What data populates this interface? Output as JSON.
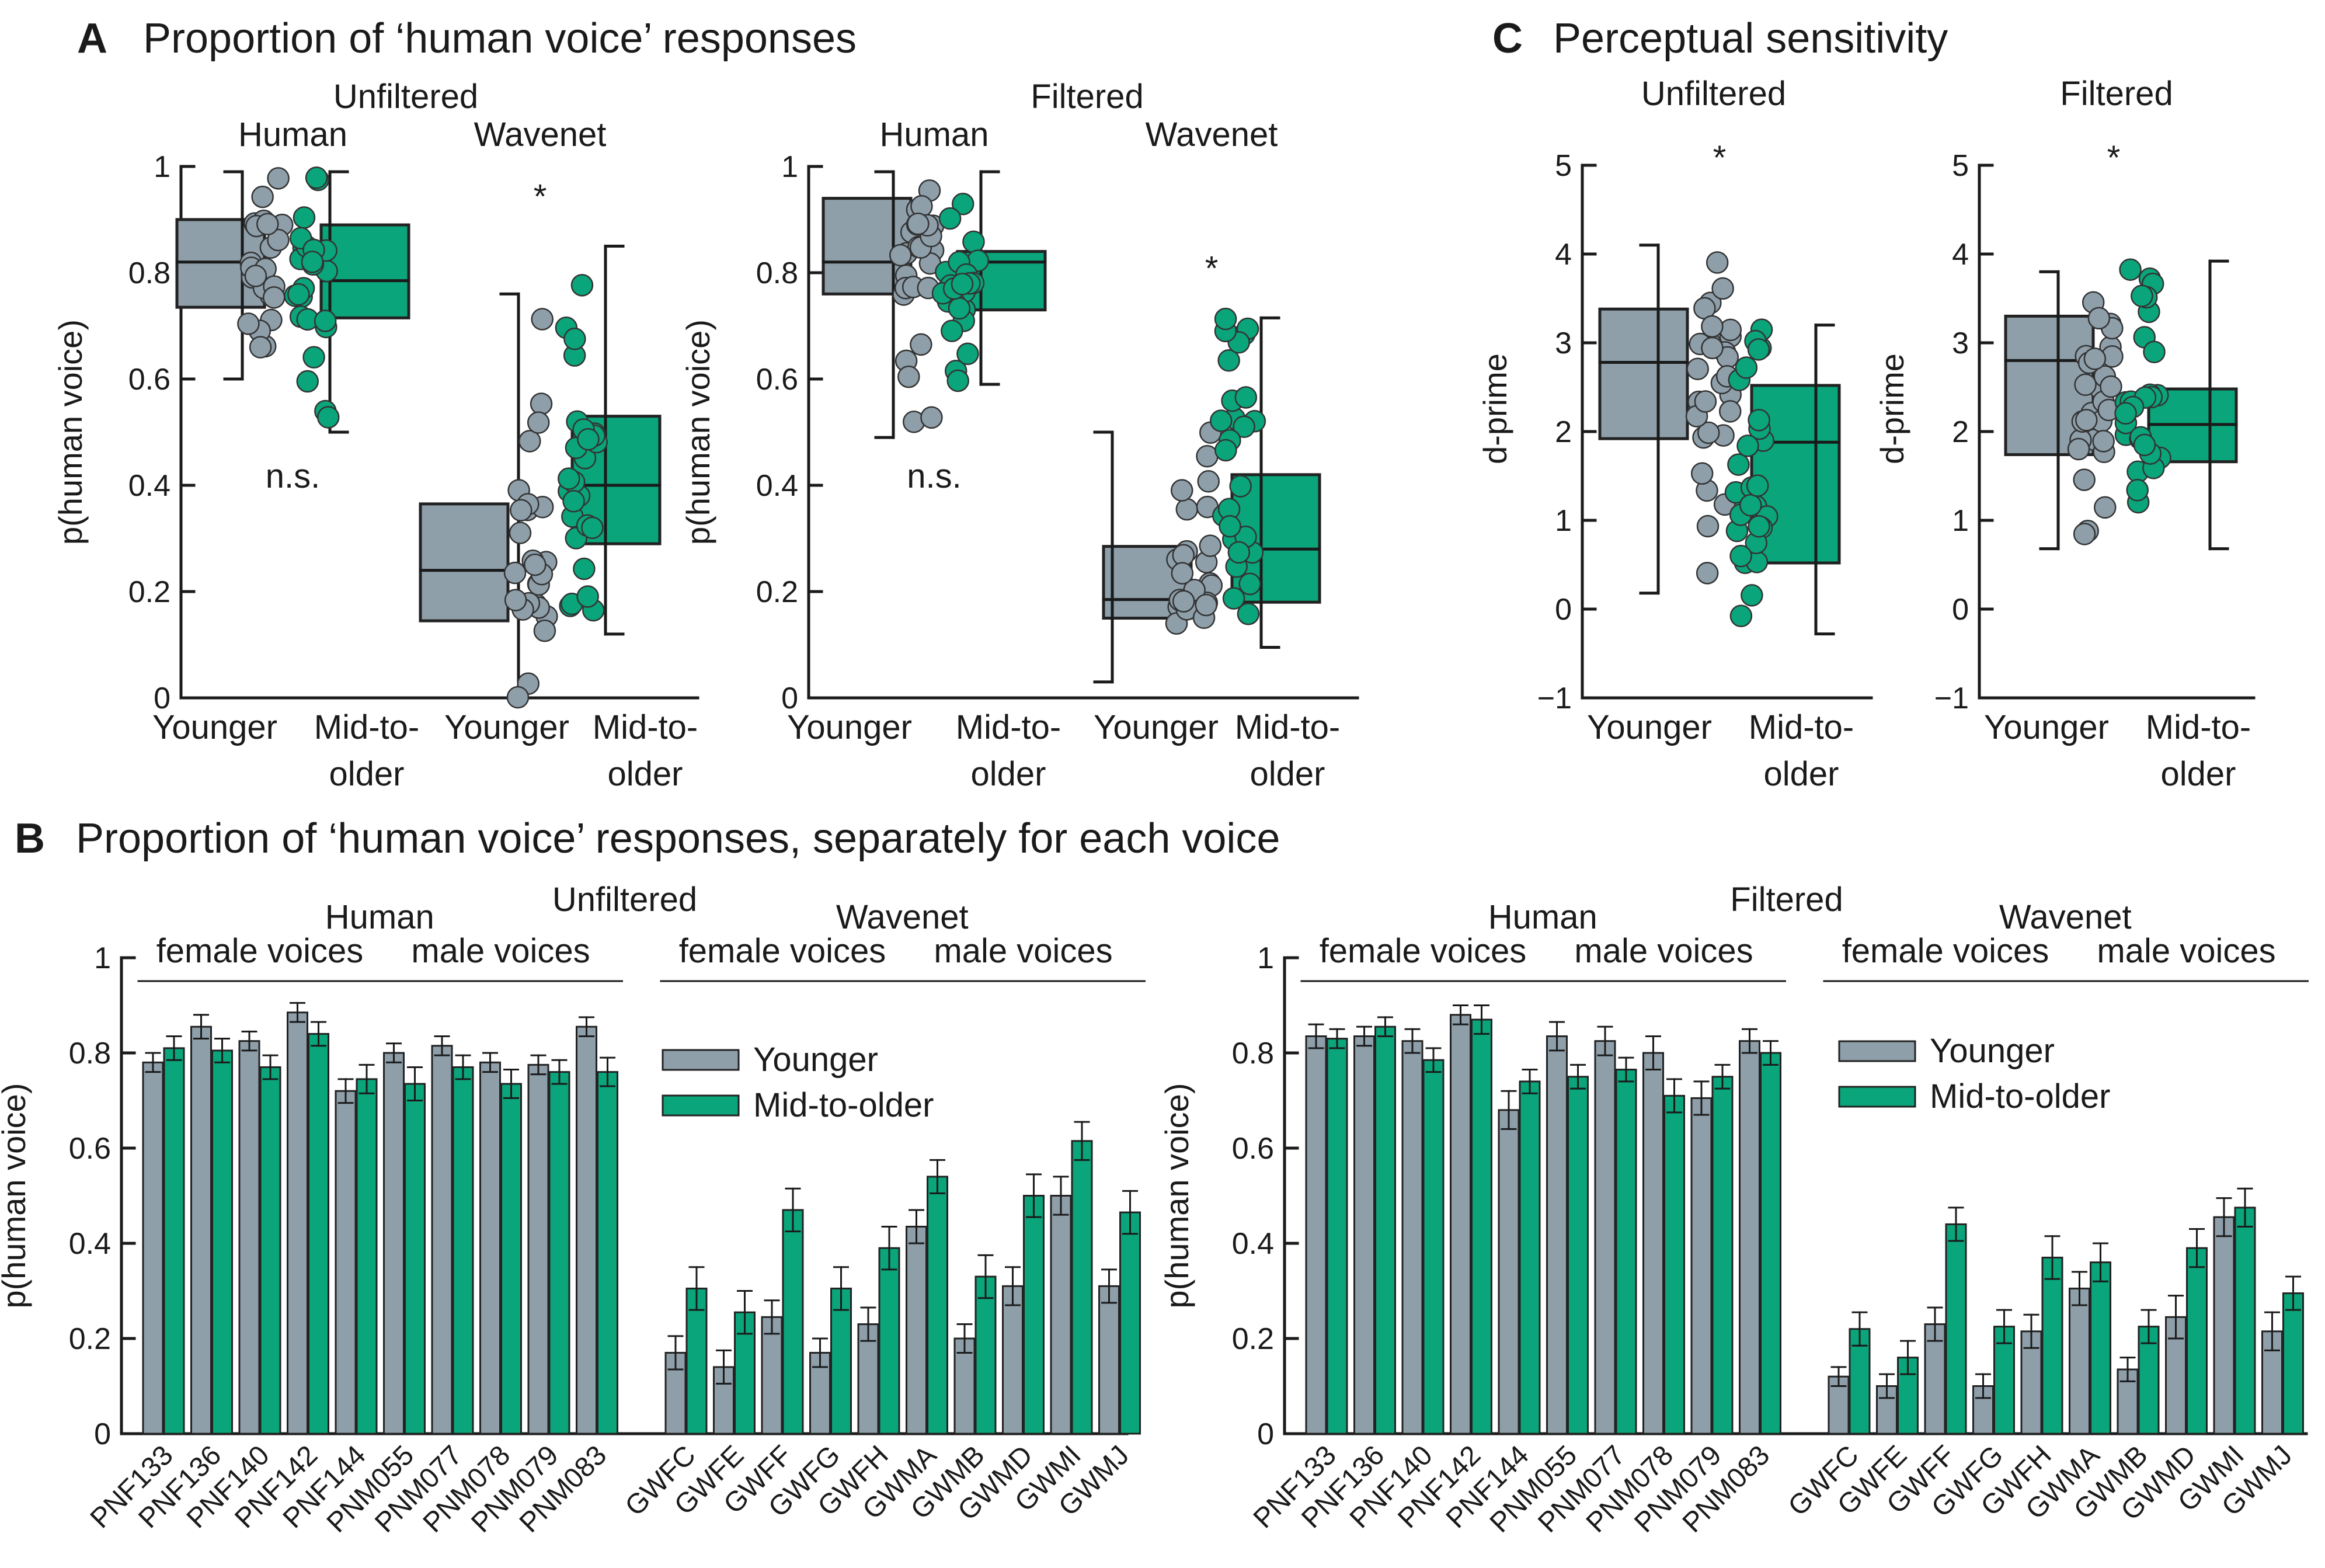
{
  "colors": {
    "younger": "#8e9faa",
    "older": "#0aa57a",
    "axis": "#1a1a1a",
    "edge": "#222222"
  },
  "chart_data": [
    {
      "id": "A",
      "type": "box",
      "title": "Proportion of ‘human voice’ responses",
      "ylabel": "p(human voice)",
      "ylim": [
        0,
        1
      ],
      "yticks": [
        "0",
        "0.2",
        "0.4",
        "0.6",
        "0.8",
        "1"
      ],
      "subplots": [
        {
          "condition": "Unfiltered",
          "panels": [
            {
              "voice": "Human",
              "annotation": "n.s.",
              "groups": [
                "Younger",
                "Mid-to-older"
              ],
              "younger": {
                "q1": 0.735,
                "median": 0.82,
                "q3": 0.9,
                "whisker_low": 0.6,
                "whisker_high": 0.99
              },
              "older": {
                "q1": 0.715,
                "median": 0.785,
                "q3": 0.89,
                "whisker_low": 0.5,
                "whisker_high": 0.99
              }
            },
            {
              "voice": "Wavenet",
              "annotation": "*",
              "groups": [
                "Younger",
                "Mid-to-older"
              ],
              "younger": {
                "q1": 0.145,
                "median": 0.24,
                "q3": 0.365,
                "whisker_low": 0.0,
                "whisker_high": 0.76
              },
              "older": {
                "q1": 0.29,
                "median": 0.4,
                "q3": 0.53,
                "whisker_low": 0.12,
                "whisker_high": 0.85
              }
            }
          ]
        },
        {
          "condition": "Filtered",
          "panels": [
            {
              "voice": "Human",
              "annotation": "n.s.",
              "groups": [
                "Younger",
                "Mid-to-older"
              ],
              "younger": {
                "q1": 0.76,
                "median": 0.82,
                "q3": 0.94,
                "whisker_low": 0.49,
                "whisker_high": 0.99
              },
              "older": {
                "q1": 0.73,
                "median": 0.82,
                "q3": 0.84,
                "whisker_low": 0.59,
                "whisker_high": 0.99
              }
            },
            {
              "voice": "Wavenet",
              "annotation": "*",
              "groups": [
                "Younger",
                "Mid-to-older"
              ],
              "younger": {
                "q1": 0.15,
                "median": 0.185,
                "q3": 0.285,
                "whisker_low": 0.03,
                "whisker_high": 0.5
              },
              "older": {
                "q1": 0.18,
                "median": 0.28,
                "q3": 0.42,
                "whisker_low": 0.095,
                "whisker_high": 0.715
              }
            }
          ]
        }
      ]
    },
    {
      "id": "B",
      "type": "bar",
      "title": "Proportion of ‘human voice’ responses, separately for each voice",
      "ylabel": "p(human voice)",
      "ylim": [
        0,
        1
      ],
      "yticks": [
        "0",
        "0.2",
        "0.4",
        "0.6",
        "0.8",
        "1"
      ],
      "legend": [
        "Younger",
        "Mid-to-older"
      ],
      "groups": [
        {
          "label": "female voices",
          "start": 0,
          "end": 4
        },
        {
          "label": "male voices",
          "start": 5,
          "end": 9
        },
        {
          "label": "female voices",
          "start": 10,
          "end": 14
        },
        {
          "label": "male voices",
          "start": 15,
          "end": 19
        }
      ],
      "voice_types": [
        {
          "label": "Human",
          "start": 0,
          "end": 9
        },
        {
          "label": "Wavenet",
          "start": 10,
          "end": 19
        }
      ],
      "categories": [
        "PNF133",
        "PNF136",
        "PNF140",
        "PNF142",
        "PNF144",
        "PNM055",
        "PNM077",
        "PNM078",
        "PNM079",
        "PNM083",
        "GWFC",
        "GWFE",
        "GWFF",
        "GWFG",
        "GWFH",
        "GWMA",
        "GWMB",
        "GWMD",
        "GWMI",
        "GWMJ"
      ],
      "subplots": [
        {
          "condition": "Unfiltered",
          "series": [
            {
              "name": "Younger",
              "values": [
                0.78,
                0.855,
                0.825,
                0.885,
                0.72,
                0.8,
                0.815,
                0.78,
                0.775,
                0.855,
                0.17,
                0.14,
                0.245,
                0.17,
                0.23,
                0.435,
                0.2,
                0.31,
                0.5,
                0.31
              ],
              "errors": [
                0.02,
                0.025,
                0.02,
                0.02,
                0.025,
                0.02,
                0.02,
                0.02,
                0.02,
                0.02,
                0.035,
                0.035,
                0.035,
                0.03,
                0.035,
                0.035,
                0.03,
                0.04,
                0.04,
                0.035
              ]
            },
            {
              "name": "Mid-to-older",
              "values": [
                0.81,
                0.805,
                0.77,
                0.84,
                0.745,
                0.735,
                0.77,
                0.735,
                0.76,
                0.76,
                0.305,
                0.255,
                0.47,
                0.305,
                0.39,
                0.54,
                0.33,
                0.5,
                0.615,
                0.465
              ],
              "errors": [
                0.025,
                0.025,
                0.025,
                0.025,
                0.03,
                0.035,
                0.025,
                0.03,
                0.025,
                0.03,
                0.045,
                0.045,
                0.045,
                0.045,
                0.045,
                0.035,
                0.045,
                0.045,
                0.04,
                0.045
              ]
            }
          ]
        },
        {
          "condition": "Filtered",
          "series": [
            {
              "name": "Younger",
              "values": [
                0.835,
                0.835,
                0.825,
                0.88,
                0.68,
                0.835,
                0.825,
                0.8,
                0.705,
                0.825,
                0.12,
                0.1,
                0.23,
                0.1,
                0.215,
                0.305,
                0.135,
                0.245,
                0.455,
                0.215
              ],
              "errors": [
                0.025,
                0.02,
                0.025,
                0.02,
                0.04,
                0.03,
                0.03,
                0.035,
                0.035,
                0.025,
                0.02,
                0.025,
                0.035,
                0.025,
                0.035,
                0.035,
                0.025,
                0.045,
                0.04,
                0.04
              ]
            },
            {
              "name": "Mid-to-older",
              "values": [
                0.83,
                0.855,
                0.785,
                0.87,
                0.74,
                0.75,
                0.765,
                0.71,
                0.75,
                0.8,
                0.22,
                0.16,
                0.44,
                0.225,
                0.37,
                0.36,
                0.225,
                0.39,
                0.475,
                0.295
              ],
              "errors": [
                0.02,
                0.02,
                0.025,
                0.03,
                0.025,
                0.025,
                0.025,
                0.035,
                0.025,
                0.025,
                0.035,
                0.035,
                0.035,
                0.035,
                0.045,
                0.04,
                0.035,
                0.04,
                0.04,
                0.035
              ]
            }
          ]
        }
      ]
    },
    {
      "id": "C",
      "type": "box",
      "title": "Perceptual sensitivity",
      "ylabel": "d-prime",
      "ylim": [
        -1,
        5
      ],
      "yticks": [
        "−1",
        "0",
        "1",
        "2",
        "3",
        "4",
        "5"
      ],
      "subplots": [
        {
          "condition": "Unfiltered",
          "annotation": "*",
          "groups": [
            "Younger",
            "Mid-to-older"
          ],
          "younger": {
            "q1": 1.92,
            "median": 2.78,
            "q3": 3.38,
            "whisker_low": 0.18,
            "whisker_high": 4.1
          },
          "older": {
            "q1": 0.52,
            "median": 1.88,
            "q3": 2.52,
            "whisker_low": -0.28,
            "whisker_high": 3.2
          }
        },
        {
          "condition": "Filtered",
          "annotation": "*",
          "groups": [
            "Younger",
            "Mid-to-older"
          ],
          "younger": {
            "q1": 1.74,
            "median": 2.8,
            "q3": 3.3,
            "whisker_low": 0.68,
            "whisker_high": 3.8
          },
          "older": {
            "q1": 1.66,
            "median": 2.08,
            "q3": 2.48,
            "whisker_low": 0.68,
            "whisker_high": 3.92
          }
        }
      ]
    }
  ]
}
